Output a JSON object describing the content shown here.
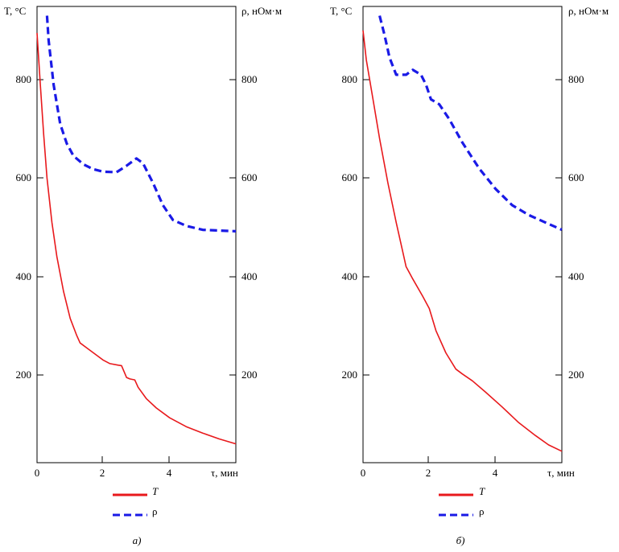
{
  "colors": {
    "T": "#e8191c",
    "rho": "#1a1ae6",
    "axis": "#000000"
  },
  "chart_data": [
    {
      "type": "line",
      "panel_label": "а)",
      "xlabel": "τ, мин",
      "ylabel_left": "T, °C",
      "ylabel_right": "ρ, нОм·м",
      "xlim": [
        0,
        6
      ],
      "ylim_left": [
        25,
        930
      ],
      "ylim_right": [
        25,
        930
      ],
      "x_ticks": [
        "0",
        "2",
        "4"
      ],
      "y_ticks_left": [
        "200",
        "400",
        "600",
        "800"
      ],
      "y_ticks_right": [
        "200",
        "400",
        "600",
        "800"
      ],
      "legend": [
        {
          "label": "T",
          "style": "solid"
        },
        {
          "label": "ρ",
          "style": "dashed"
        }
      ],
      "series": [
        {
          "name": "T",
          "axis": "left",
          "style": "solid",
          "points": [
            [
              0,
              895
            ],
            [
              0.1,
              790
            ],
            [
              0.2,
              690
            ],
            [
              0.3,
              600
            ],
            [
              0.45,
              510
            ],
            [
              0.6,
              440
            ],
            [
              0.8,
              370
            ],
            [
              1.0,
              315
            ],
            [
              1.2,
              280
            ],
            [
              1.3,
              265
            ],
            [
              1.5,
              255
            ],
            [
              1.8,
              240
            ],
            [
              2.0,
              230
            ],
            [
              2.2,
              223
            ],
            [
              2.45,
              220
            ],
            [
              2.55,
              219
            ],
            [
              2.7,
              195
            ],
            [
              2.8,
              192
            ],
            [
              2.95,
              190
            ],
            [
              3.05,
              175
            ],
            [
              3.3,
              152
            ],
            [
              3.6,
              133
            ],
            [
              4.0,
              113
            ],
            [
              4.5,
              95
            ],
            [
              5.0,
              82
            ],
            [
              5.5,
              70
            ],
            [
              6.0,
              60
            ]
          ]
        },
        {
          "name": "ρ",
          "axis": "right",
          "style": "dashed",
          "points": [
            [
              0.3,
              930
            ],
            [
              0.35,
              880
            ],
            [
              0.5,
              790
            ],
            [
              0.7,
              710
            ],
            [
              0.9,
              670
            ],
            [
              1.1,
              645
            ],
            [
              1.4,
              628
            ],
            [
              1.7,
              618
            ],
            [
              2.0,
              613
            ],
            [
              2.4,
              612
            ],
            [
              2.7,
              625
            ],
            [
              3.0,
              640
            ],
            [
              3.2,
              630
            ],
            [
              3.5,
              590
            ],
            [
              3.8,
              545
            ],
            [
              4.1,
              515
            ],
            [
              4.5,
              503
            ],
            [
              5.0,
              495
            ],
            [
              6.0,
              492
            ]
          ]
        }
      ]
    },
    {
      "type": "line",
      "panel_label": "б)",
      "xlabel": "τ, мин",
      "ylabel_left": "T, °C",
      "ylabel_right": "ρ, нОм·м",
      "xlim": [
        0,
        6
      ],
      "ylim_left": [
        25,
        930
      ],
      "ylim_right": [
        25,
        930
      ],
      "x_ticks": [
        "0",
        "2",
        "4"
      ],
      "y_ticks_left": [
        "200",
        "400",
        "600",
        "800"
      ],
      "y_ticks_right": [
        "200",
        "400",
        "600",
        "800"
      ],
      "legend": [
        {
          "label": "T",
          "style": "solid"
        },
        {
          "label": "ρ",
          "style": "dashed"
        }
      ],
      "series": [
        {
          "name": "T",
          "axis": "left",
          "style": "solid",
          "points": [
            [
              0,
              900
            ],
            [
              0.1,
              840
            ],
            [
              0.3,
              760
            ],
            [
              0.5,
              680
            ],
            [
              0.75,
              590
            ],
            [
              1.0,
              510
            ],
            [
              1.2,
              450
            ],
            [
              1.3,
              420
            ],
            [
              1.5,
              395
            ],
            [
              1.8,
              360
            ],
            [
              2.0,
              335
            ],
            [
              2.2,
              290
            ],
            [
              2.5,
              245
            ],
            [
              2.8,
              212
            ],
            [
              3.0,
              202
            ],
            [
              3.3,
              188
            ],
            [
              3.7,
              165
            ],
            [
              4.2,
              135
            ],
            [
              4.7,
              103
            ],
            [
              5.2,
              77
            ],
            [
              5.6,
              58
            ],
            [
              6.0,
              45
            ]
          ]
        },
        {
          "name": "ρ",
          "axis": "right",
          "style": "dashed",
          "points": [
            [
              0.5,
              930
            ],
            [
              0.65,
              890
            ],
            [
              0.8,
              845
            ],
            [
              1.0,
              810
            ],
            [
              1.3,
              810
            ],
            [
              1.5,
              820
            ],
            [
              1.75,
              810
            ],
            [
              1.9,
              790
            ],
            [
              2.05,
              760
            ],
            [
              2.3,
              750
            ],
            [
              2.6,
              720
            ],
            [
              3.0,
              672
            ],
            [
              3.5,
              620
            ],
            [
              4.0,
              578
            ],
            [
              4.5,
              545
            ],
            [
              5.0,
              525
            ],
            [
              5.5,
              510
            ],
            [
              6.0,
              495
            ]
          ]
        }
      ]
    }
  ]
}
